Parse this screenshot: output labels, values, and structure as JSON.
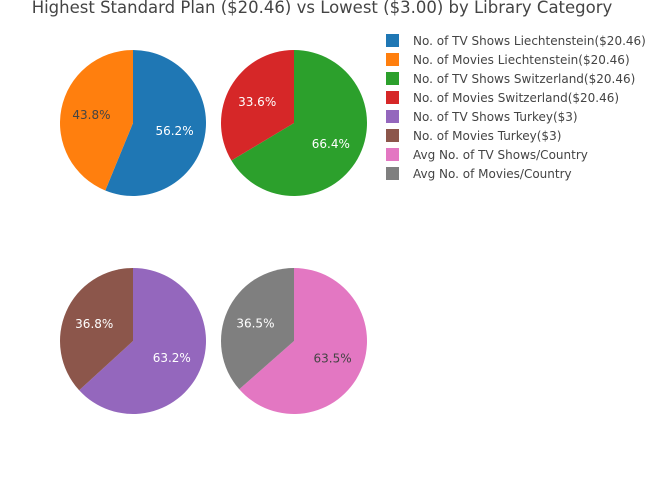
{
  "chart_data": {
    "type": "pie",
    "title": "Highest Standard Plan ($20.46) vs Lowest ($3.00) by Library Category",
    "legend_position": "top-right",
    "pies": [
      {
        "slices": [
          {
            "label": "No. of TV Shows Liechtenstein($20.46)",
            "percent": 56.2,
            "color": "#1f77b4",
            "label_color": "#ffffff"
          },
          {
            "label": "No. of Movies Liechtenstein($20.46)",
            "percent": 43.8,
            "color": "#ff7f0e",
            "label_color": "#444444"
          }
        ]
      },
      {
        "slices": [
          {
            "label": "No. of TV Shows Switzerland($20.46)",
            "percent": 66.4,
            "color": "#2ca02c",
            "label_color": "#ffffff"
          },
          {
            "label": "No. of Movies Switzerland($20.46)",
            "percent": 33.6,
            "color": "#d62728",
            "label_color": "#ffffff"
          }
        ]
      },
      {
        "slices": [
          {
            "label": "No. of TV Shows Turkey($3)",
            "percent": 63.2,
            "color": "#9467bd",
            "label_color": "#ffffff"
          },
          {
            "label": "No. of Movies Turkey($3)",
            "percent": 36.8,
            "color": "#8c564b",
            "label_color": "#ffffff"
          }
        ]
      },
      {
        "slices": [
          {
            "label": "Avg No. of TV Shows/Country",
            "percent": 63.5,
            "color": "#e377c2",
            "label_color": "#444444"
          },
          {
            "label": "Avg No. of Movies/Country",
            "percent": 36.5,
            "color": "#7f7f7f",
            "label_color": "#ffffff"
          }
        ]
      }
    ],
    "legend": [
      {
        "label": "No. of TV Shows Liechtenstein($20.46)",
        "color": "#1f77b4"
      },
      {
        "label": "No. of Movies Liechtenstein($20.46)",
        "color": "#ff7f0e"
      },
      {
        "label": "No. of TV Shows Switzerland($20.46)",
        "color": "#2ca02c"
      },
      {
        "label": "No. of Movies Switzerland($20.46)",
        "color": "#d62728"
      },
      {
        "label": "No. of TV Shows Turkey($3)",
        "color": "#9467bd"
      },
      {
        "label": "No. of Movies Turkey($3)",
        "color": "#8c564b"
      },
      {
        "label": "Avg No. of TV Shows/Country",
        "color": "#e377c2"
      },
      {
        "label": "Avg No. of Movies/Country",
        "color": "#7f7f7f"
      }
    ]
  }
}
